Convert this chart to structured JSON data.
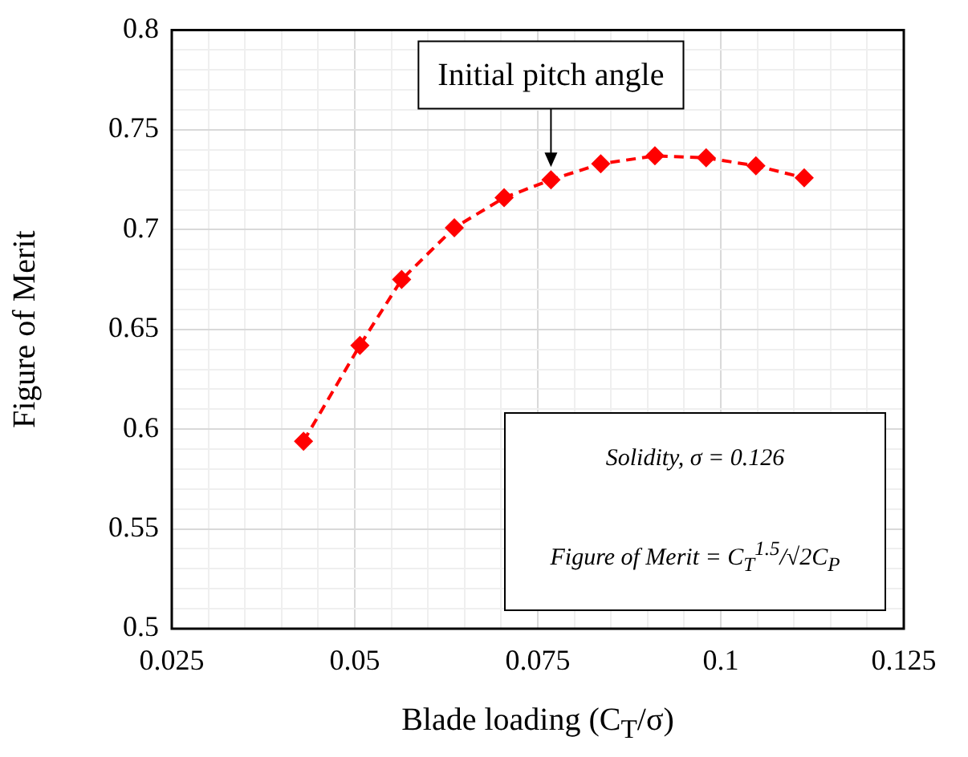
{
  "chart_data": {
    "type": "line",
    "xlabel": "Blade loading (C$_{T}$/σ)",
    "ylabel": "Figure of Merit",
    "x": [
      0.043,
      0.0507,
      0.0564,
      0.0636,
      0.0704,
      0.0768,
      0.0836,
      0.091,
      0.098,
      0.1048,
      0.1114
    ],
    "series": [
      {
        "color": "#ff0000",
        "values": [
          0.594,
          0.642,
          0.675,
          0.701,
          0.716,
          0.725,
          0.733,
          0.737,
          0.736,
          0.732,
          0.726
        ]
      }
    ],
    "xlim": [
      0.025,
      0.125
    ],
    "xticks": [
      0.025,
      {
        "value": 0.03,
        "label": null
      },
      {
        "value": 0.035,
        "label": null
      },
      {
        "value": 0.04,
        "label": null
      },
      {
        "value": 0.045,
        "label": null
      },
      0.05,
      {
        "value": 0.055,
        "label": null
      },
      {
        "value": 0.06,
        "label": null
      },
      {
        "value": 0.065,
        "label": null
      },
      {
        "value": 0.07,
        "label": null
      },
      0.075,
      {
        "value": 0.08,
        "label": null
      },
      {
        "value": 0.085,
        "label": null
      },
      {
        "value": 0.09,
        "label": null
      },
      {
        "value": 0.095,
        "label": null
      },
      0.1,
      {
        "value": 0.105,
        "label": null
      },
      {
        "value": 0.11,
        "label": null
      },
      {
        "value": 0.115,
        "label": null
      },
      {
        "value": 0.12,
        "label": null
      },
      0.125
    ],
    "ylim": [
      0.5,
      0.8
    ],
    "yticks": [
      0.5,
      {
        "value": 0.51,
        "label": null
      },
      {
        "value": 0.52,
        "label": null
      },
      {
        "value": 0.53,
        "label": null
      },
      {
        "value": 0.54,
        "label": null
      },
      0.55,
      {
        "value": 0.56,
        "label": null
      },
      {
        "value": 0.57,
        "label": null
      },
      {
        "value": 0.58,
        "label": null
      },
      {
        "value": 0.59,
        "label": null
      },
      0.6,
      {
        "value": 0.61,
        "label": null
      },
      {
        "value": 0.62,
        "label": null
      },
      {
        "value": 0.63,
        "label": null
      },
      {
        "value": 0.64,
        "label": null
      },
      0.65,
      {
        "value": 0.66,
        "label": null
      },
      {
        "value": 0.67,
        "label": null
      },
      {
        "value": 0.68,
        "label": null
      },
      {
        "value": 0.69,
        "label": null
      },
      0.7,
      {
        "value": 0.71,
        "label": null
      },
      {
        "value": 0.72,
        "label": null
      },
      {
        "value": 0.73,
        "label": null
      },
      {
        "value": 0.74,
        "label": null
      },
      0.75,
      {
        "value": 0.76,
        "label": null
      },
      {
        "value": 0.77,
        "label": null
      },
      {
        "value": 0.78,
        "label": null
      },
      {
        "value": 0.79,
        "label": null
      },
      0.8
    ],
    "grid": true,
    "marker": "diamond",
    "line_style": "dashed",
    "annotations": [
      {
        "text": "Initial pitch angle",
        "x": 0.0768,
        "y": 0.725
      },
      "Solidity, σ = 0.126",
      "Figure of Merit = C$_{T}$$^{1.5}$/√2C$_{P}$"
    ]
  }
}
